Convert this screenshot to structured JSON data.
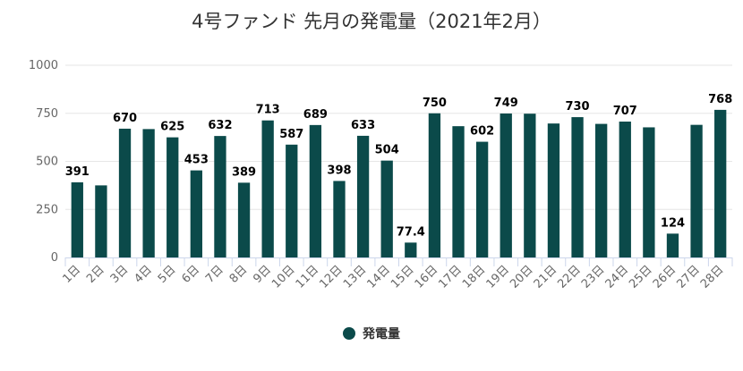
{
  "chart_data": {
    "type": "bar",
    "title": "4号ファンド 先月の発電量（2021年2月）",
    "xlabel": "",
    "ylabel": "",
    "ylim": [
      0,
      1000
    ],
    "yticks": [
      "0",
      "250",
      "500",
      "750",
      "1000"
    ],
    "grid": true,
    "legend_position": "bottom-center",
    "bar_color": "#0b4a4a",
    "categories": [
      "1日",
      "2日",
      "3日",
      "4日",
      "5日",
      "6日",
      "7日",
      "8日",
      "9日",
      "10日",
      "11日",
      "12日",
      "13日",
      "14日",
      "15日",
      "16日",
      "17日",
      "18日",
      "19日",
      "20日",
      "21日",
      "22日",
      "23日",
      "24日",
      "25日",
      "26日",
      "27日",
      "28日"
    ],
    "series": [
      {
        "name": "発電量",
        "values": [
          391,
          375,
          670,
          668,
          625,
          453,
          632,
          389,
          713,
          587,
          689,
          398,
          633,
          504,
          77.4,
          750,
          683,
          602,
          749,
          748,
          697,
          730,
          695,
          707,
          677,
          124,
          690,
          768
        ],
        "data_labels": [
          "391",
          "",
          "670",
          "",
          "625",
          "453",
          "632",
          "389",
          "713",
          "587",
          "689",
          "398",
          "633",
          "504",
          "77.4",
          "750",
          "",
          "602",
          "749",
          "",
          "",
          "730",
          "",
          "707",
          "",
          "124",
          "",
          "768"
        ]
      }
    ]
  }
}
